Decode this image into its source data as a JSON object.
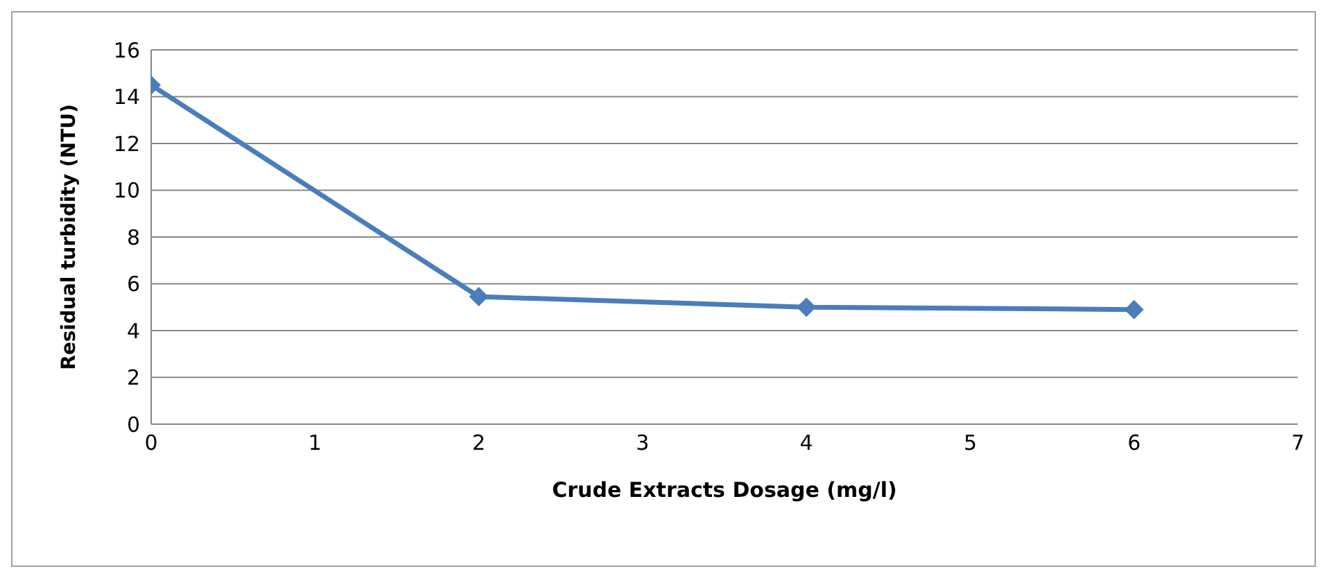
{
  "chart_data": {
    "type": "line",
    "xlabel": "Crude Extracts Dosage (mg/l)",
    "ylabel": "Residual turbidity (NTU)",
    "x": [
      0,
      2,
      4,
      6
    ],
    "series": [
      {
        "color": "#4a7ebb",
        "values": [
          14.5,
          5.45,
          5.0,
          4.9
        ]
      }
    ],
    "xlim": [
      0,
      7
    ],
    "xticks": [
      0,
      1,
      2,
      3,
      4,
      5,
      6,
      7
    ],
    "ylim": [
      0,
      16
    ],
    "yticks": [
      0,
      2,
      4,
      6,
      8,
      10,
      12,
      14,
      16
    ],
    "grid": "y",
    "legend": false,
    "marker": "diamond",
    "line_style": "solid"
  }
}
